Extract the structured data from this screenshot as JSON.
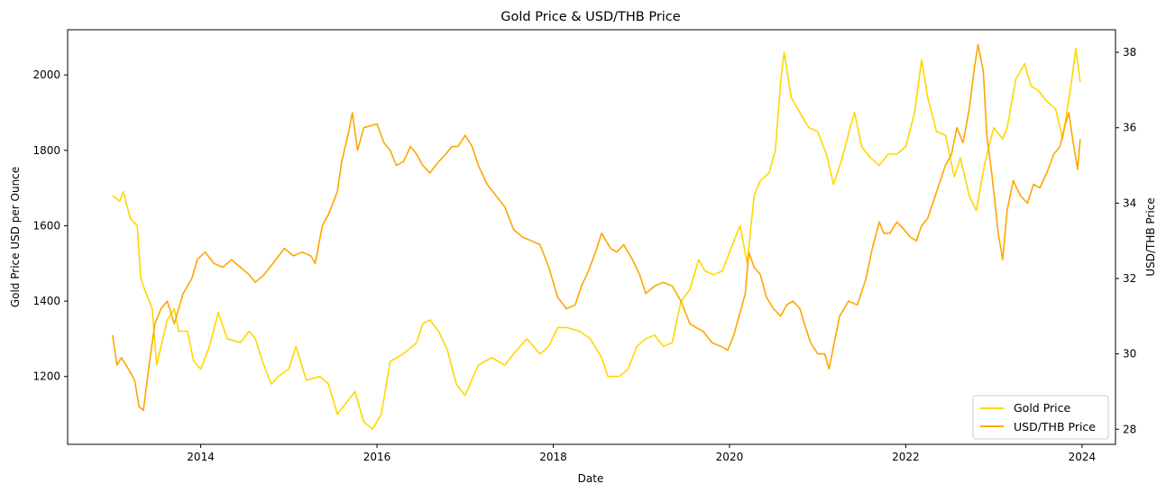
{
  "chart_data": {
    "type": "line",
    "title": "Gold Price & USD/THB Price",
    "xlabel": "Date",
    "ylabel_left": "Gold Price USD per Ounce",
    "ylabel_right": "USD/THB Price",
    "x_ticks": [
      "2014",
      "2016",
      "2018",
      "2020",
      "2022",
      "2024"
    ],
    "xlim": [
      2012.49,
      2024.38
    ],
    "y_left_ticks": [
      1200,
      1400,
      1600,
      1800,
      2000
    ],
    "y_left_lim": [
      1020,
      2120
    ],
    "y_right_ticks": [
      28,
      30,
      32,
      34,
      36,
      38
    ],
    "y_right_lim": [
      27.6,
      38.6
    ],
    "grid": false,
    "legend_position": "lower-right",
    "series": [
      {
        "name": "Gold Price",
        "axis": "left",
        "color": "#FFD700",
        "points": [
          [
            2013.0,
            1680
          ],
          [
            2013.08,
            1665
          ],
          [
            2013.12,
            1690
          ],
          [
            2013.2,
            1620
          ],
          [
            2013.28,
            1600
          ],
          [
            2013.32,
            1460
          ],
          [
            2013.38,
            1420
          ],
          [
            2013.45,
            1380
          ],
          [
            2013.5,
            1230
          ],
          [
            2013.55,
            1280
          ],
          [
            2013.62,
            1350
          ],
          [
            2013.7,
            1380
          ],
          [
            2013.75,
            1320
          ],
          [
            2013.85,
            1320
          ],
          [
            2013.92,
            1240
          ],
          [
            2014.0,
            1220
          ],
          [
            2014.1,
            1280
          ],
          [
            2014.2,
            1370
          ],
          [
            2014.3,
            1300
          ],
          [
            2014.45,
            1290
          ],
          [
            2014.55,
            1320
          ],
          [
            2014.62,
            1300
          ],
          [
            2014.7,
            1240
          ],
          [
            2014.8,
            1180
          ],
          [
            2014.88,
            1200
          ],
          [
            2015.0,
            1220
          ],
          [
            2015.08,
            1280
          ],
          [
            2015.2,
            1190
          ],
          [
            2015.35,
            1200
          ],
          [
            2015.45,
            1180
          ],
          [
            2015.55,
            1100
          ],
          [
            2015.65,
            1130
          ],
          [
            2015.75,
            1160
          ],
          [
            2015.85,
            1080
          ],
          [
            2015.95,
            1060
          ],
          [
            2016.05,
            1100
          ],
          [
            2016.15,
            1240
          ],
          [
            2016.3,
            1260
          ],
          [
            2016.45,
            1290
          ],
          [
            2016.52,
            1340
          ],
          [
            2016.6,
            1350
          ],
          [
            2016.7,
            1320
          ],
          [
            2016.8,
            1270
          ],
          [
            2016.9,
            1180
          ],
          [
            2017.0,
            1150
          ],
          [
            2017.15,
            1230
          ],
          [
            2017.3,
            1250
          ],
          [
            2017.45,
            1230
          ],
          [
            2017.55,
            1260
          ],
          [
            2017.7,
            1300
          ],
          [
            2017.85,
            1260
          ],
          [
            2017.95,
            1280
          ],
          [
            2018.05,
            1330
          ],
          [
            2018.15,
            1330
          ],
          [
            2018.3,
            1320
          ],
          [
            2018.42,
            1300
          ],
          [
            2018.55,
            1250
          ],
          [
            2018.62,
            1200
          ],
          [
            2018.75,
            1200
          ],
          [
            2018.85,
            1220
          ],
          [
            2018.95,
            1280
          ],
          [
            2019.05,
            1300
          ],
          [
            2019.15,
            1310
          ],
          [
            2019.25,
            1280
          ],
          [
            2019.35,
            1290
          ],
          [
            2019.45,
            1400
          ],
          [
            2019.55,
            1430
          ],
          [
            2019.65,
            1510
          ],
          [
            2019.72,
            1480
          ],
          [
            2019.82,
            1470
          ],
          [
            2019.92,
            1480
          ],
          [
            2020.05,
            1560
          ],
          [
            2020.12,
            1600
          ],
          [
            2020.2,
            1500
          ],
          [
            2020.28,
            1680
          ],
          [
            2020.35,
            1720
          ],
          [
            2020.45,
            1740
          ],
          [
            2020.52,
            1800
          ],
          [
            2020.58,
            1980
          ],
          [
            2020.62,
            2060
          ],
          [
            2020.7,
            1940
          ],
          [
            2020.8,
            1900
          ],
          [
            2020.9,
            1860
          ],
          [
            2021.0,
            1850
          ],
          [
            2021.1,
            1790
          ],
          [
            2021.18,
            1710
          ],
          [
            2021.28,
            1780
          ],
          [
            2021.38,
            1870
          ],
          [
            2021.42,
            1900
          ],
          [
            2021.5,
            1810
          ],
          [
            2021.6,
            1780
          ],
          [
            2021.7,
            1760
          ],
          [
            2021.8,
            1790
          ],
          [
            2021.9,
            1790
          ],
          [
            2022.0,
            1810
          ],
          [
            2022.1,
            1900
          ],
          [
            2022.18,
            2040
          ],
          [
            2022.25,
            1940
          ],
          [
            2022.35,
            1850
          ],
          [
            2022.45,
            1840
          ],
          [
            2022.55,
            1730
          ],
          [
            2022.62,
            1780
          ],
          [
            2022.72,
            1680
          ],
          [
            2022.8,
            1640
          ],
          [
            2022.9,
            1770
          ],
          [
            2023.0,
            1860
          ],
          [
            2023.1,
            1830
          ],
          [
            2023.15,
            1860
          ],
          [
            2023.25,
            1990
          ],
          [
            2023.35,
            2030
          ],
          [
            2023.42,
            1970
          ],
          [
            2023.5,
            1960
          ],
          [
            2023.6,
            1930
          ],
          [
            2023.7,
            1910
          ],
          [
            2023.78,
            1830
          ],
          [
            2023.88,
            1980
          ],
          [
            2023.93,
            2070
          ],
          [
            2023.98,
            1980
          ]
        ]
      },
      {
        "name": "USD/THB Price",
        "axis": "right",
        "color": "#FFA500",
        "points": [
          [
            2013.0,
            30.5
          ],
          [
            2013.05,
            29.7
          ],
          [
            2013.1,
            29.9
          ],
          [
            2013.18,
            29.6
          ],
          [
            2013.25,
            29.3
          ],
          [
            2013.3,
            28.6
          ],
          [
            2013.35,
            28.5
          ],
          [
            2013.42,
            29.8
          ],
          [
            2013.48,
            30.8
          ],
          [
            2013.55,
            31.2
          ],
          [
            2013.62,
            31.4
          ],
          [
            2013.7,
            30.8
          ],
          [
            2013.8,
            31.6
          ],
          [
            2013.9,
            32.0
          ],
          [
            2013.96,
            32.5
          ],
          [
            2014.05,
            32.7
          ],
          [
            2014.15,
            32.4
          ],
          [
            2014.25,
            32.3
          ],
          [
            2014.35,
            32.5
          ],
          [
            2014.45,
            32.3
          ],
          [
            2014.55,
            32.1
          ],
          [
            2014.62,
            31.9
          ],
          [
            2014.72,
            32.1
          ],
          [
            2014.82,
            32.4
          ],
          [
            2014.95,
            32.8
          ],
          [
            2015.05,
            32.6
          ],
          [
            2015.15,
            32.7
          ],
          [
            2015.25,
            32.6
          ],
          [
            2015.3,
            32.4
          ],
          [
            2015.38,
            33.4
          ],
          [
            2015.45,
            33.7
          ],
          [
            2015.55,
            34.3
          ],
          [
            2015.6,
            35.1
          ],
          [
            2015.68,
            35.9
          ],
          [
            2015.72,
            36.4
          ],
          [
            2015.78,
            35.4
          ],
          [
            2015.85,
            36.0
          ],
          [
            2016.0,
            36.1
          ],
          [
            2016.08,
            35.6
          ],
          [
            2016.15,
            35.4
          ],
          [
            2016.22,
            35.0
          ],
          [
            2016.3,
            35.1
          ],
          [
            2016.38,
            35.5
          ],
          [
            2016.45,
            35.3
          ],
          [
            2016.52,
            35.0
          ],
          [
            2016.6,
            34.8
          ],
          [
            2016.7,
            35.1
          ],
          [
            2016.78,
            35.3
          ],
          [
            2016.85,
            35.5
          ],
          [
            2016.92,
            35.5
          ],
          [
            2017.0,
            35.8
          ],
          [
            2017.08,
            35.5
          ],
          [
            2017.15,
            35.0
          ],
          [
            2017.25,
            34.5
          ],
          [
            2017.35,
            34.2
          ],
          [
            2017.45,
            33.9
          ],
          [
            2017.55,
            33.3
          ],
          [
            2017.65,
            33.1
          ],
          [
            2017.75,
            33.0
          ],
          [
            2017.85,
            32.9
          ],
          [
            2017.95,
            32.3
          ],
          [
            2018.05,
            31.5
          ],
          [
            2018.15,
            31.2
          ],
          [
            2018.25,
            31.3
          ],
          [
            2018.32,
            31.8
          ],
          [
            2018.4,
            32.2
          ],
          [
            2018.48,
            32.7
          ],
          [
            2018.55,
            33.2
          ],
          [
            2018.65,
            32.8
          ],
          [
            2018.72,
            32.7
          ],
          [
            2018.8,
            32.9
          ],
          [
            2018.9,
            32.5
          ],
          [
            2018.98,
            32.1
          ],
          [
            2019.05,
            31.6
          ],
          [
            2019.15,
            31.8
          ],
          [
            2019.25,
            31.9
          ],
          [
            2019.35,
            31.8
          ],
          [
            2019.45,
            31.4
          ],
          [
            2019.55,
            30.8
          ],
          [
            2019.62,
            30.7
          ],
          [
            2019.7,
            30.6
          ],
          [
            2019.8,
            30.3
          ],
          [
            2019.9,
            30.2
          ],
          [
            2019.98,
            30.1
          ],
          [
            2020.05,
            30.5
          ],
          [
            2020.12,
            31.1
          ],
          [
            2020.18,
            31.6
          ],
          [
            2020.22,
            32.7
          ],
          [
            2020.28,
            32.3
          ],
          [
            2020.35,
            32.1
          ],
          [
            2020.42,
            31.5
          ],
          [
            2020.5,
            31.2
          ],
          [
            2020.58,
            31.0
          ],
          [
            2020.65,
            31.3
          ],
          [
            2020.72,
            31.4
          ],
          [
            2020.8,
            31.2
          ],
          [
            2020.85,
            30.8
          ],
          [
            2020.92,
            30.3
          ],
          [
            2021.0,
            30.0
          ],
          [
            2021.08,
            30.0
          ],
          [
            2021.13,
            29.6
          ],
          [
            2021.18,
            30.2
          ],
          [
            2021.25,
            31.0
          ],
          [
            2021.35,
            31.4
          ],
          [
            2021.45,
            31.3
          ],
          [
            2021.55,
            32.0
          ],
          [
            2021.62,
            32.8
          ],
          [
            2021.7,
            33.5
          ],
          [
            2021.75,
            33.2
          ],
          [
            2021.82,
            33.2
          ],
          [
            2021.9,
            33.5
          ],
          [
            2021.98,
            33.3
          ],
          [
            2022.05,
            33.1
          ],
          [
            2022.12,
            33.0
          ],
          [
            2022.18,
            33.4
          ],
          [
            2022.25,
            33.6
          ],
          [
            2022.35,
            34.3
          ],
          [
            2022.45,
            35.0
          ],
          [
            2022.52,
            35.3
          ],
          [
            2022.58,
            36.0
          ],
          [
            2022.65,
            35.6
          ],
          [
            2022.72,
            36.5
          ],
          [
            2022.78,
            37.6
          ],
          [
            2022.82,
            38.2
          ],
          [
            2022.88,
            37.5
          ],
          [
            2022.92,
            35.8
          ],
          [
            2022.98,
            34.7
          ],
          [
            2023.05,
            33.2
          ],
          [
            2023.1,
            32.5
          ],
          [
            2023.15,
            33.8
          ],
          [
            2023.22,
            34.6
          ],
          [
            2023.3,
            34.2
          ],
          [
            2023.38,
            34.0
          ],
          [
            2023.45,
            34.5
          ],
          [
            2023.52,
            34.4
          ],
          [
            2023.6,
            34.8
          ],
          [
            2023.68,
            35.3
          ],
          [
            2023.75,
            35.5
          ],
          [
            2023.8,
            36.0
          ],
          [
            2023.85,
            36.4
          ],
          [
            2023.9,
            35.6
          ],
          [
            2023.95,
            34.9
          ],
          [
            2023.98,
            35.7
          ]
        ]
      }
    ]
  }
}
